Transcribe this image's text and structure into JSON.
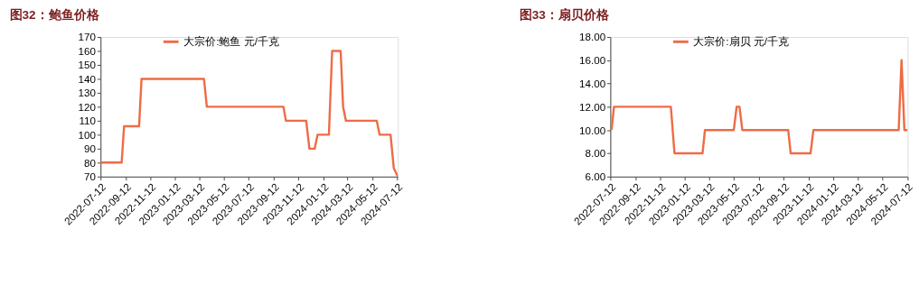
{
  "chart_data": [
    {
      "type": "line",
      "title": "图32：鲍鱼价格",
      "legend": "top",
      "grid": false,
      "marker": "none",
      "line_style": "solid",
      "xlim": [
        "2022-07-12",
        "2024-07-14"
      ],
      "xticks": [
        "2022-07-12",
        "2022-09-12",
        "2022-11-12",
        "2023-01-12",
        "2023-03-12",
        "2023-05-12",
        "2023-07-12",
        "2023-09-12",
        "2023-11-12",
        "2024-01-12",
        "2024-03-12",
        "2024-05-12",
        "2024-07-12"
      ],
      "ylim": [
        70,
        170
      ],
      "yticks": [
        70,
        80,
        90,
        100,
        110,
        120,
        130,
        140,
        150,
        160,
        170
      ],
      "series": [
        {
          "name": "大宗价:鲍鱼 元/千克",
          "color": "#ee6c45",
          "x": [
            "2022-07-12",
            "2022-09-02",
            "2022-09-08",
            "2022-10-15",
            "2022-10-21",
            "2023-03-24",
            "2023-03-31",
            "2023-10-06",
            "2023-10-12",
            "2023-12-01",
            "2023-12-09",
            "2023-12-22",
            "2023-12-29",
            "2024-01-26",
            "2024-02-03",
            "2024-02-24",
            "2024-03-01",
            "2024-03-08",
            "2024-05-23",
            "2024-05-30",
            "2024-06-26",
            "2024-07-04",
            "2024-07-14"
          ],
          "values": [
            80,
            80,
            106,
            106,
            140,
            140,
            120,
            120,
            110,
            110,
            90,
            90,
            100,
            100,
            160,
            160,
            120,
            110,
            110,
            100,
            100,
            76,
            70
          ]
        }
      ]
    },
    {
      "type": "line",
      "title": "图33：扇贝价格",
      "legend": "top",
      "grid": false,
      "marker": "none",
      "line_style": "solid",
      "xlim": [
        "2022-07-12",
        "2024-07-13"
      ],
      "xticks": [
        "2022-07-12",
        "2022-09-12",
        "2022-11-12",
        "2023-01-12",
        "2023-03-12",
        "2023-05-12",
        "2023-07-12",
        "2023-09-12",
        "2023-11-12",
        "2024-01-12",
        "2024-03-12",
        "2024-05-12",
        "2024-07-12"
      ],
      "ylim": [
        6,
        18
      ],
      "yticks": [
        {
          "value": 6,
          "label": "6.00"
        },
        {
          "value": 8,
          "label": "8.00"
        },
        {
          "value": 10,
          "label": "10.00"
        },
        {
          "value": 12,
          "label": "12.00"
        },
        {
          "value": 14,
          "label": "14.00"
        },
        {
          "value": 16,
          "label": "16.00"
        },
        {
          "value": 18,
          "label": "18.00"
        }
      ],
      "series": [
        {
          "name": "大宗价:扇贝 元/千克",
          "color": "#ee6c45",
          "x": [
            "2022-07-15",
            "2022-07-21",
            "2022-12-08",
            "2022-12-17",
            "2023-02-24",
            "2023-03-02",
            "2023-05-12",
            "2023-05-19",
            "2023-05-26",
            "2023-06-02",
            "2023-09-23",
            "2023-09-29",
            "2023-11-17",
            "2023-11-24",
            "2024-06-21",
            "2024-06-28",
            "2024-07-05",
            "2024-07-13"
          ],
          "values": [
            10,
            12,
            12,
            8,
            8,
            10,
            10,
            12,
            12,
            10,
            10,
            8,
            8,
            10,
            10,
            16,
            10,
            10
          ]
        }
      ]
    }
  ]
}
